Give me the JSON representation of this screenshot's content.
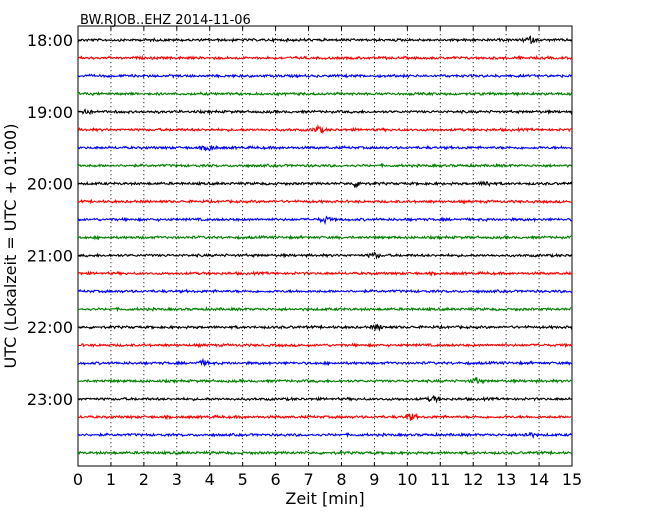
{
  "chart_data": {
    "type": "line",
    "title": "BW.RJOB..EHZ 2014-11-06",
    "xlabel": "Zeit  [min]",
    "ylabel": "UTC (Lokalzeit = UTC + 01:00)",
    "xlim": [
      0,
      15
    ],
    "x_ticks": [
      "0",
      "1",
      "2",
      "3",
      "4",
      "5",
      "6",
      "7",
      "8",
      "9",
      "10",
      "11",
      "12",
      "13",
      "14",
      "15"
    ],
    "y_tick_labels": [
      "18:00",
      "19:00",
      "20:00",
      "21:00",
      "22:00",
      "23:00"
    ],
    "y_ticks_minutes": [
      0,
      60,
      120,
      180,
      240,
      300
    ],
    "grid": "vertical dotted at each minute",
    "row_minutes": [
      0,
      15,
      30,
      45,
      60,
      75,
      90,
      105,
      120,
      135,
      150,
      165,
      180,
      195,
      210,
      225,
      240,
      255,
      270,
      285,
      300,
      315,
      330,
      345
    ],
    "row_colors": [
      "#000000",
      "#ff0000",
      "#0000ff",
      "#008000"
    ],
    "noise_amplitude": 0.12,
    "events": [
      {
        "row": 0,
        "minute": 13.7,
        "amp": 0.35
      },
      {
        "row": 4,
        "minute": 0.2,
        "amp": 0.3
      },
      {
        "row": 5,
        "minute": 7.3,
        "amp": 0.35
      },
      {
        "row": 6,
        "minute": 4.0,
        "amp": 0.3
      },
      {
        "row": 8,
        "minute": 8.5,
        "amp": 0.35
      },
      {
        "row": 8,
        "minute": 12.4,
        "amp": 0.25
      },
      {
        "row": 10,
        "minute": 7.5,
        "amp": 0.3
      },
      {
        "row": 12,
        "minute": 9.0,
        "amp": 0.25
      },
      {
        "row": 16,
        "minute": 9.1,
        "amp": 0.25
      },
      {
        "row": 18,
        "minute": 3.8,
        "amp": 0.25
      },
      {
        "row": 19,
        "minute": 12.1,
        "amp": 0.3
      },
      {
        "row": 20,
        "minute": 10.8,
        "amp": 0.25
      },
      {
        "row": 21,
        "minute": 10.1,
        "amp": 0.35
      },
      {
        "row": 22,
        "minute": 13.7,
        "amp": 0.25
      }
    ]
  }
}
